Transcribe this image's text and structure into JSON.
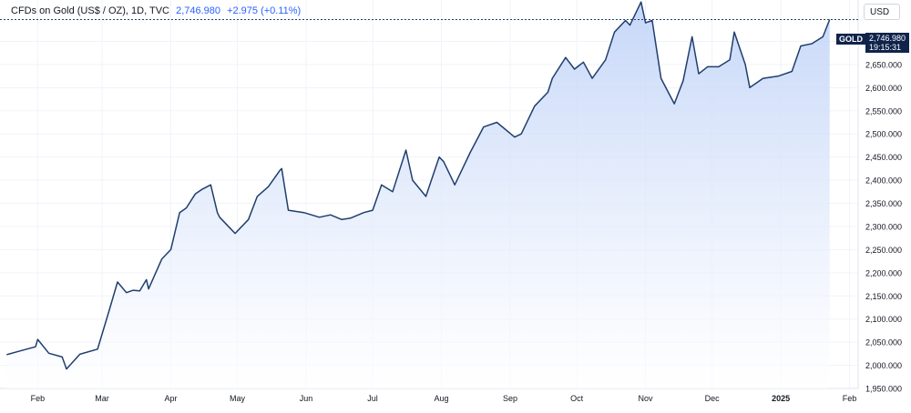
{
  "header": {
    "title": "CFDs on Gold (US$ / OZ), 1D, TVC",
    "value": "2,746.980",
    "change": "+2.975 (+0.11%)"
  },
  "currency": "USD",
  "last_price": {
    "symbol": "GOLD",
    "price": "2,746.980",
    "countdown": "19:15:31"
  },
  "colors": {
    "line": "#1f3e6e",
    "fill_top": "#bcd0f7",
    "fill_bottom": "#ffffff",
    "grid": "#f0f3fa",
    "tag_bg": "#10234b"
  },
  "chart_data": {
    "type": "area",
    "title": "CFDs on Gold (US$ / OZ)",
    "ylim": [
      1950,
      2750
    ],
    "y_ticks": [
      "1,950.000",
      "2,000.000",
      "2,050.000",
      "2,100.000",
      "2,150.000",
      "2,200.000",
      "2,250.000",
      "2,300.000",
      "2,350.000",
      "2,400.000",
      "2,450.000",
      "2,500.000",
      "2,550.000",
      "2,600.000",
      "2,650.000",
      "2,700.000"
    ],
    "x_ticks": [
      "Feb",
      "Mar",
      "Apr",
      "May",
      "Jun",
      "Jul",
      "Aug",
      "Sep",
      "Oct",
      "Nov",
      "Dec",
      "2025",
      "Feb"
    ],
    "grid": true,
    "series": [
      {
        "x": [
          "2024-01-18",
          "2024-01-24",
          "2024-01-31",
          "2024-02-01",
          "2024-02-06",
          "2024-02-12",
          "2024-02-14",
          "2024-02-20",
          "2024-02-28",
          "2024-03-04",
          "2024-03-08",
          "2024-03-12",
          "2024-03-15",
          "2024-03-18",
          "2024-03-21",
          "2024-03-22",
          "2024-03-28",
          "2024-04-01",
          "2024-04-05",
          "2024-04-08",
          "2024-04-12",
          "2024-04-15",
          "2024-04-19",
          "2024-04-22",
          "2024-04-23",
          "2024-04-30",
          "2024-05-06",
          "2024-05-10",
          "2024-05-15",
          "2024-05-20",
          "2024-05-21",
          "2024-05-24",
          "2024-05-31",
          "2024-06-07",
          "2024-06-12",
          "2024-06-17",
          "2024-06-21",
          "2024-06-27",
          "2024-07-01",
          "2024-07-05",
          "2024-07-10",
          "2024-07-16",
          "2024-07-19",
          "2024-07-25",
          "2024-07-31",
          "2024-08-02",
          "2024-08-07",
          "2024-08-14",
          "2024-08-20",
          "2024-08-26",
          "2024-09-03",
          "2024-09-06",
          "2024-09-12",
          "2024-09-18",
          "2024-09-20",
          "2024-09-26",
          "2024-09-30",
          "2024-10-04",
          "2024-10-08",
          "2024-10-14",
          "2024-10-18",
          "2024-10-23",
          "2024-10-25",
          "2024-10-30",
          "2024-11-01",
          "2024-11-04",
          "2024-11-08",
          "2024-11-14",
          "2024-11-18",
          "2024-11-22",
          "2024-11-25",
          "2024-11-29",
          "2024-12-04",
          "2024-12-09",
          "2024-12-11",
          "2024-12-16",
          "2024-12-18",
          "2024-12-24",
          "2024-12-31",
          "2025-01-06",
          "2025-01-10",
          "2025-01-15",
          "2025-01-20",
          "2025-01-23"
        ],
        "y": [
          2023,
          2031,
          2040,
          2056,
          2026,
          2018,
          1992,
          2024,
          2035,
          2115,
          2180,
          2157,
          2162,
          2161,
          2185,
          2165,
          2230,
          2250,
          2330,
          2340,
          2370,
          2380,
          2390,
          2330,
          2320,
          2285,
          2315,
          2365,
          2386,
          2420,
          2425,
          2335,
          2330,
          2320,
          2325,
          2315,
          2318,
          2330,
          2335,
          2390,
          2375,
          2465,
          2400,
          2365,
          2450,
          2440,
          2390,
          2460,
          2515,
          2525,
          2493,
          2500,
          2560,
          2590,
          2620,
          2665,
          2640,
          2655,
          2620,
          2660,
          2720,
          2745,
          2735,
          2785,
          2740,
          2745,
          2620,
          2565,
          2615,
          2710,
          2630,
          2645,
          2645,
          2660,
          2720,
          2650,
          2600,
          2620,
          2625,
          2635,
          2690,
          2695,
          2710,
          2746.98
        ]
      }
    ]
  }
}
